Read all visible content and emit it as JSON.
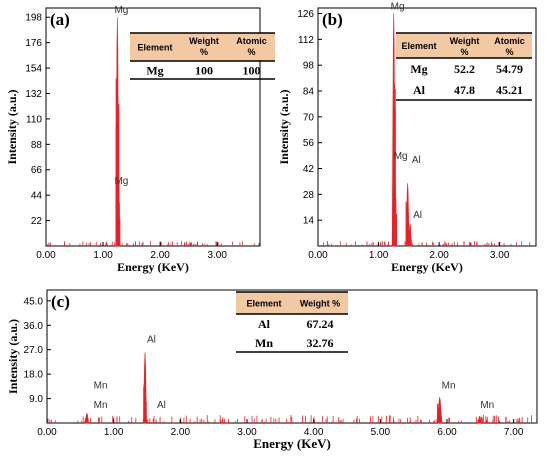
{
  "colors": {
    "spectrum": "#e8202a",
    "axis": "#000000",
    "tableHeader": "#f3c9a4"
  },
  "chart_data": [
    {
      "type": "spectrum",
      "panel": "(a)",
      "xlabel": "Energy (KeV)",
      "ylabel": "Intensity (a.u.)",
      "xlim": [
        0,
        3.75
      ],
      "ylim": [
        0,
        206
      ],
      "xticks": [
        "0.00",
        "1.00",
        "2.00",
        "3.00"
      ],
      "xtick_values": [
        0,
        1,
        2,
        3
      ],
      "yticks": [
        "22",
        "44",
        "66",
        "88",
        "110",
        "132",
        "154",
        "176",
        "198"
      ],
      "ytick_values": [
        22,
        44,
        66,
        88,
        110,
        132,
        154,
        176,
        198
      ],
      "peaks": [
        {
          "x": 1.25,
          "y": 198,
          "w": 0.028
        },
        {
          "x": 1.27,
          "y": 60,
          "w": 0.05
        }
      ],
      "annotations": [
        {
          "text": "Mg",
          "x": 1.2,
          "y": 200
        },
        {
          "text": "Mg",
          "x": 1.2,
          "y": 52
        }
      ],
      "table": {
        "headers": [
          "Element",
          "Weight %",
          "Atomic %"
        ],
        "rows": [
          [
            "Mg",
            "100",
            "100"
          ]
        ]
      }
    },
    {
      "type": "spectrum",
      "panel": "(b)",
      "xlabel": "Energy (KeV)",
      "ylabel": "Intensity (a.u.)",
      "xlim": [
        0,
        3.6
      ],
      "ylim": [
        0,
        129
      ],
      "xticks": [
        "0.00",
        "1.00",
        "2.00",
        "3.00"
      ],
      "xtick_values": [
        0,
        1,
        2,
        3
      ],
      "yticks": [
        "14",
        "28",
        "42",
        "56",
        "70",
        "84",
        "98",
        "112",
        "126"
      ],
      "ytick_values": [
        14,
        28,
        42,
        56,
        70,
        84,
        98,
        112,
        126
      ],
      "peaks": [
        {
          "x": 1.25,
          "y": 126,
          "w": 0.03
        },
        {
          "x": 1.27,
          "y": 38,
          "w": 0.05
        },
        {
          "x": 1.48,
          "y": 34,
          "w": 0.025
        },
        {
          "x": 1.52,
          "y": 12,
          "w": 0.04
        }
      ],
      "annotations": [
        {
          "text": "Mg",
          "x": 1.2,
          "y": 127
        },
        {
          "text": "Mg",
          "x": 1.25,
          "y": 46
        },
        {
          "text": "Al",
          "x": 1.55,
          "y": 44
        },
        {
          "text": "Al",
          "x": 1.57,
          "y": 14
        }
      ],
      "table": {
        "headers": [
          "Element",
          "Weight %",
          "Atomic %"
        ],
        "rows": [
          [
            "Mg",
            "52.2",
            "54.79"
          ],
          [
            "Al",
            "47.8",
            "45.21"
          ]
        ]
      }
    },
    {
      "type": "spectrum",
      "panel": "(c)",
      "xlabel": "Energy (KeV)",
      "ylabel": "Intensity (a.u.)",
      "xlim": [
        0,
        7.35
      ],
      "ylim": [
        0,
        49
      ],
      "xticks": [
        "0.00",
        "1.00",
        "2.00",
        "3.00",
        "4.00",
        "5.00",
        "6.00",
        "7.00"
      ],
      "xtick_values": [
        0,
        1,
        2,
        3,
        4,
        5,
        6,
        7
      ],
      "yticks": [
        "9.0",
        "18.0",
        "27.0",
        "36.0",
        "45.0"
      ],
      "ytick_values": [
        9,
        18,
        27,
        36,
        45
      ],
      "peaks": [
        {
          "x": 0.6,
          "y": 3.5,
          "w": 0.05
        },
        {
          "x": 1.47,
          "y": 26,
          "w": 0.035
        },
        {
          "x": 5.89,
          "y": 9.5,
          "w": 0.06
        },
        {
          "x": 6.49,
          "y": 2.5,
          "w": 0.05
        }
      ],
      "annotations": [
        {
          "text": "Al",
          "x": 1.5,
          "y": 29
        },
        {
          "text": "Mn",
          "x": 0.7,
          "y": 12
        },
        {
          "text": "Mn",
          "x": 0.7,
          "y": 4.8
        },
        {
          "text": "Al",
          "x": 1.65,
          "y": 4.8
        },
        {
          "text": "Mn",
          "x": 5.92,
          "y": 12
        },
        {
          "text": "Mn",
          "x": 6.5,
          "y": 4.8
        }
      ],
      "table": {
        "headers": [
          "Element",
          "Weight %"
        ],
        "rows": [
          [
            "Al",
            "67.24"
          ],
          [
            "Mn",
            "32.76"
          ]
        ]
      }
    }
  ]
}
